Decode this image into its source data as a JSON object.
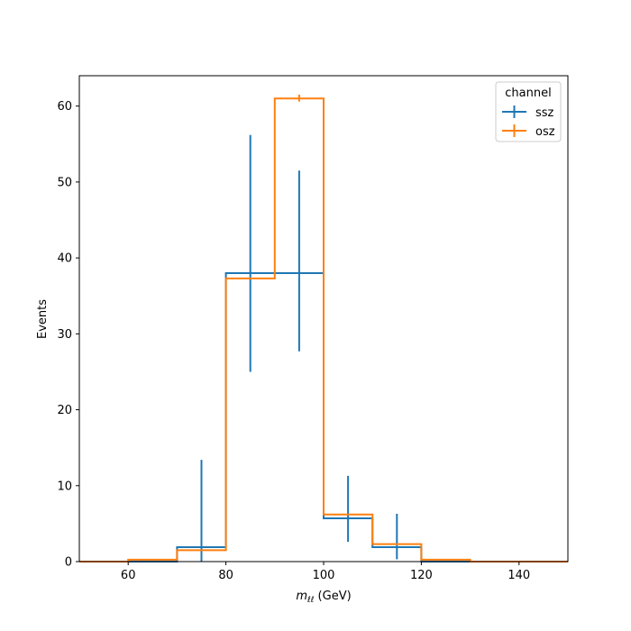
{
  "chart_data": {
    "type": "histogram-step",
    "xlabel": {
      "var": "m",
      "sub": "ℓℓ",
      "unit": " (GeV)"
    },
    "ylabel": "Events",
    "xlim": [
      50,
      150
    ],
    "ylim": [
      0,
      64
    ],
    "xticks": [
      60,
      80,
      100,
      120,
      140
    ],
    "yticks": [
      0,
      10,
      20,
      30,
      40,
      50,
      60
    ],
    "bin_edges": [
      50,
      60,
      70,
      80,
      90,
      100,
      110,
      120,
      130,
      140,
      150
    ],
    "legend": {
      "title": "channel",
      "position": "upper right"
    },
    "series": [
      {
        "name": "ssz",
        "color": "#1f77b4",
        "values": [
          0,
          0,
          1.9,
          38.0,
          38.0,
          5.7,
          1.9,
          0,
          0,
          0
        ],
        "errorbars": [
          {
            "x": 75,
            "low": 0,
            "high": 13.4
          },
          {
            "x": 85,
            "low": 25.0,
            "high": 56.2
          },
          {
            "x": 95,
            "low": 27.7,
            "high": 51.5
          },
          {
            "x": 105,
            "low": 2.6,
            "high": 11.3
          },
          {
            "x": 115,
            "low": 0.3,
            "high": 6.3
          }
        ]
      },
      {
        "name": "osz",
        "color": "#ff7f0e",
        "values": [
          0,
          0.25,
          1.5,
          37.3,
          61.0,
          6.2,
          2.3,
          0.25,
          0,
          0
        ],
        "errorbars": [
          {
            "x": 95,
            "low": 60.6,
            "high": 61.5
          }
        ]
      }
    ]
  }
}
